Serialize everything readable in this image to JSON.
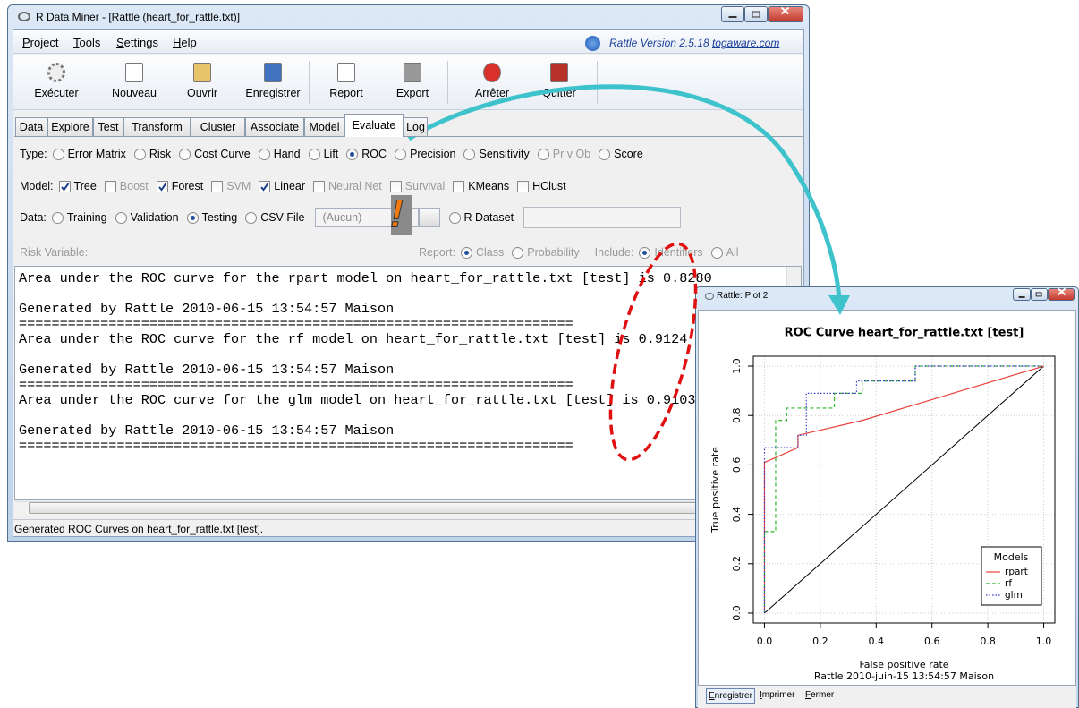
{
  "window": {
    "title": "R Data Miner - [Rattle (heart_for_rattle.txt)]",
    "menu": [
      "Project",
      "Tools",
      "Settings",
      "Help"
    ],
    "version": "Rattle Version 2.5.18",
    "link": "togaware.com",
    "toolbar": [
      "Exécuter",
      "Nouveau",
      "Ouvrir",
      "Enregistrer",
      "Report",
      "Export",
      "Arrêter",
      "Quitter"
    ],
    "tabs": [
      "Data",
      "Explore",
      "Test",
      "Transform",
      "Cluster",
      "Associate",
      "Model",
      "Evaluate",
      "Log"
    ],
    "active_tab": 7,
    "type": {
      "label": "Type:",
      "options": [
        "Error Matrix",
        "Risk",
        "Cost Curve",
        "Hand",
        "Lift",
        "ROC",
        "Precision",
        "Sensitivity",
        "Pr v Ob",
        "Score"
      ],
      "selected": 5,
      "disabled": [
        8
      ]
    },
    "model": {
      "label": "Model:",
      "options": [
        "Tree",
        "Boost",
        "Forest",
        "SVM",
        "Linear",
        "Neural Net",
        "Survival",
        "KMeans",
        "HClust"
      ],
      "checked": [
        0,
        2,
        4
      ],
      "disabled": [
        1,
        3,
        5,
        6
      ]
    },
    "data": {
      "label": "Data:",
      "options": [
        "Training",
        "Validation",
        "Testing",
        "CSV File"
      ],
      "selected": 2,
      "file": "(Aucun)",
      "dataset": "R Dataset"
    },
    "risk": {
      "label": "Risk Variable:",
      "report": "Report:",
      "report_options": [
        "Class",
        "Probability"
      ],
      "include": "Include:",
      "include_options": [
        "Identifiers",
        "All"
      ]
    },
    "output": [
      {
        "result": "Area under the ROC curve for the rpart model on heart_for_rattle.txt [test] is 0.8280",
        "generated": "Generated by Rattle 2010-06-15 13:54:57 Maison",
        "separator": "===================================================================="
      },
      {
        "result": "Area under the ROC curve for the rf model on heart_for_rattle.txt [test] is 0.9124",
        "generated": "Generated by Rattle 2010-06-15 13:54:57 Maison",
        "separator": "===================================================================="
      },
      {
        "result": "Area under the ROC curve for the glm model on heart_for_rattle.txt [test] is 0.9103",
        "generated": "Generated by Rattle 2010-06-15 13:54:57 Maison",
        "separator": "===================================================================="
      }
    ],
    "status": "Generated ROC Curves on heart_for_rattle.txt [test]."
  },
  "annotation": "!",
  "plot": {
    "window_title": "Rattle: Plot 2",
    "type": "line",
    "title": "ROC Curve  heart_for_rattle.txt [test]",
    "xlabel": "False positive rate",
    "ylabel": "True positive rate",
    "subtitle": "Rattle 2010-juin-15 13:54:57 Maison",
    "xlim": [
      -0.04,
      1.04
    ],
    "ylim": [
      -0.04,
      1.04
    ],
    "xticks": [
      {
        "value": 0,
        "label": "0.0"
      },
      {
        "value": 0.2,
        "label": "0.2"
      },
      {
        "value": 0.4,
        "label": "0.4"
      },
      {
        "value": 0.6,
        "label": "0.6"
      },
      {
        "value": 0.8,
        "label": "0.8"
      },
      {
        "value": 1,
        "label": "1.0"
      }
    ],
    "yticks": [
      {
        "value": 0,
        "label": "0.0"
      },
      {
        "value": 0.2,
        "label": "0.2"
      },
      {
        "value": 0.4,
        "label": "0.4"
      },
      {
        "value": 0.6,
        "label": "0.6"
      },
      {
        "value": 0.8,
        "label": "0.8"
      },
      {
        "value": 1,
        "label": "1.0"
      }
    ],
    "grid": true,
    "legend_title": "Models",
    "legend": "lower right",
    "reference": {
      "x": [
        0,
        1
      ],
      "y": [
        0,
        1
      ],
      "color": "#000000"
    },
    "series": [
      {
        "name": "rpart",
        "color": "#e8413c",
        "style": "solid",
        "x": [
          0,
          0,
          0.12,
          0.12,
          0.35,
          1
        ],
        "y": [
          0,
          0.61,
          0.67,
          0.72,
          0.78,
          1
        ]
      },
      {
        "name": "rf",
        "color": "#2fb52f",
        "style": "dashed",
        "x": [
          0,
          0,
          0.04,
          0.04,
          0.08,
          0.08,
          0.25,
          0.25,
          0.35,
          0.35,
          0.54,
          0.54,
          1
        ],
        "y": [
          0,
          0.33,
          0.33,
          0.78,
          0.78,
          0.83,
          0.83,
          0.89,
          0.89,
          0.94,
          0.94,
          1,
          1
        ]
      },
      {
        "name": "glm",
        "color": "#3a3ad0",
        "style": "dotted",
        "x": [
          0,
          0,
          0.12,
          0.12,
          0.15,
          0.15,
          0.33,
          0.33,
          0.42,
          0.42,
          0.54,
          0.54,
          1
        ],
        "y": [
          0,
          0.67,
          0.67,
          0.72,
          0.72,
          0.89,
          0.89,
          0.94,
          0.94,
          0.94,
          0.94,
          1,
          1
        ]
      }
    ],
    "buttons": [
      "Enregistrer",
      "Imprimer",
      "Fermer"
    ]
  }
}
